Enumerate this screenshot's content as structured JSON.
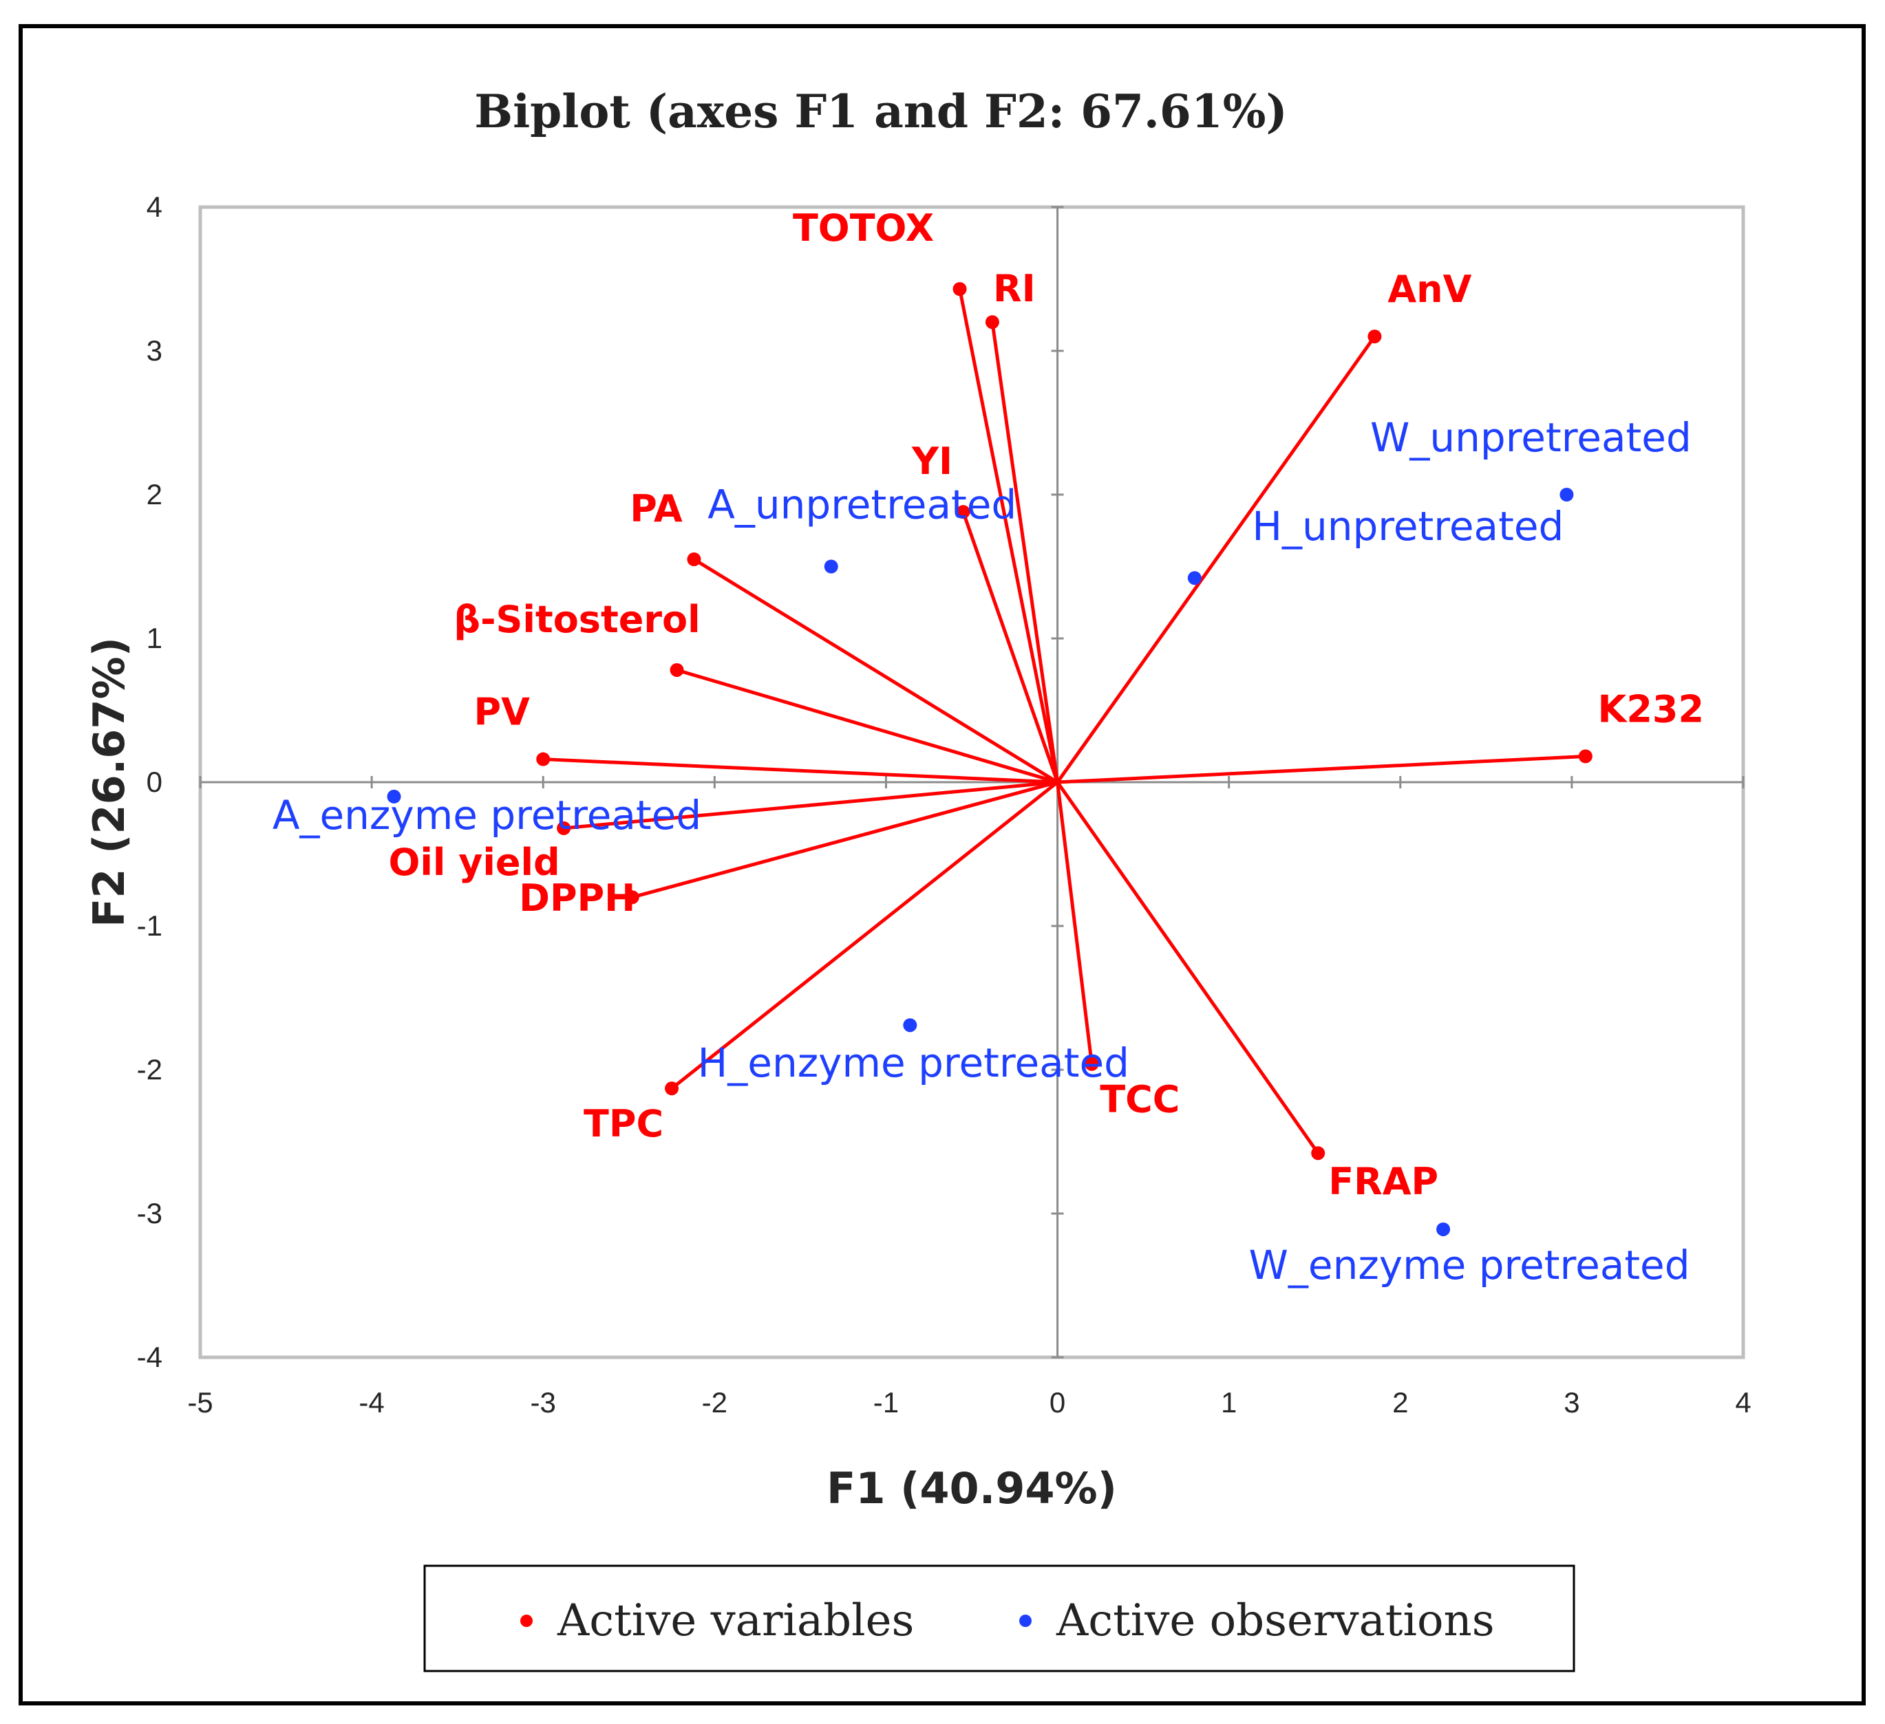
{
  "chart_data": {
    "type": "scatter",
    "subtype": "biplot",
    "title": "Biplot (axes F1 and F2: 67.61%)",
    "xlabel": "F1 (40.94%)",
    "ylabel": "F2 (26.67%)",
    "xlim": [
      -5,
      4
    ],
    "ylim": [
      -4,
      4
    ],
    "x_ticks": [
      "-5",
      "-4",
      "-3",
      "-2",
      "-1",
      "0",
      "1",
      "2",
      "3",
      "4"
    ],
    "y_ticks": [
      "-4",
      "-3",
      "-2",
      "-1",
      "0",
      "1",
      "2",
      "3",
      "4"
    ],
    "grid": false,
    "legend_position": "bottom",
    "colors": {
      "variables": "#ff0000",
      "observations": "#1f3fff"
    },
    "series": [
      {
        "name": "Active variables",
        "style": "vectors",
        "points": [
          {
            "label": "TOTOX",
            "x": -0.57,
            "y": 3.43
          },
          {
            "label": "RI",
            "x": -0.38,
            "y": 3.2
          },
          {
            "label": "AnV",
            "x": 1.85,
            "y": 3.1
          },
          {
            "label": "YI",
            "x": -0.55,
            "y": 1.88
          },
          {
            "label": "PA",
            "x": -2.12,
            "y": 1.55
          },
          {
            "label": "β-Sitosterol",
            "x": -2.22,
            "y": 0.78
          },
          {
            "label": "PV",
            "x": -3.0,
            "y": 0.16
          },
          {
            "label": "K232",
            "x": 3.08,
            "y": 0.18
          },
          {
            "label": "Oil yield",
            "x": -2.88,
            "y": -0.32
          },
          {
            "label": "DPPH",
            "x": -2.48,
            "y": -0.8
          },
          {
            "label": "TPC",
            "x": -2.25,
            "y": -2.13
          },
          {
            "label": "TCC",
            "x": 0.2,
            "y": -1.96
          },
          {
            "label": "FRAP",
            "x": 1.52,
            "y": -2.58
          }
        ]
      },
      {
        "name": "Active observations",
        "style": "points",
        "points": [
          {
            "label": "W_unpretreated",
            "x": 2.97,
            "y": 2.0
          },
          {
            "label": "H_unpretreated",
            "x": 0.8,
            "y": 1.42
          },
          {
            "label": "A_unpretreated",
            "x": -1.32,
            "y": 1.5
          },
          {
            "label": "A_enzyme pretreated",
            "x": -3.87,
            "y": -0.1
          },
          {
            "label": "H_enzyme pretreated",
            "x": -0.86,
            "y": -1.69
          },
          {
            "label": "W_enzyme pretreated",
            "x": 2.25,
            "y": -3.11
          }
        ]
      }
    ]
  }
}
